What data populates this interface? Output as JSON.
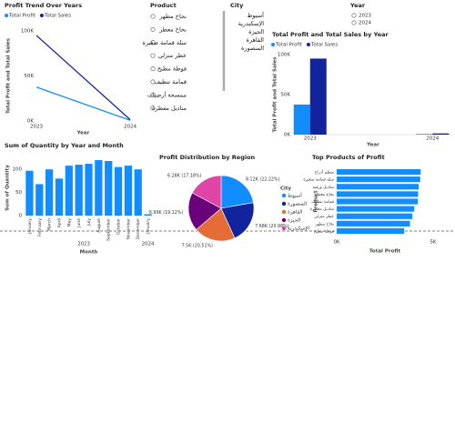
{
  "chart_data": [
    {
      "type": "line",
      "title": "Profit Trend Over Years",
      "x_label": "Year",
      "y_label": "Total Profit and Total Sales",
      "categories": [
        "2023",
        "2024"
      ],
      "series": [
        {
          "name": "Total Profit",
          "color": "#118dff",
          "values": [
            37.6,
            0.8
          ]
        },
        {
          "name": "Total Sales",
          "color": "#12239e",
          "values": [
            95,
            1.5
          ]
        }
      ],
      "ylim": [
        0,
        100
      ],
      "yticks": [
        {
          "value": 0,
          "label": "0K"
        },
        {
          "value": 50,
          "label": "50K"
        },
        {
          "value": 100,
          "label": "100K"
        }
      ]
    },
    {
      "type": "grouped_bar",
      "title": "Total Profit and Total Sales by Year",
      "x_label": "Year",
      "y_label": "Total Profit and Total Sales",
      "categories": [
        "2023",
        "2024"
      ],
      "series": [
        {
          "name": "Total Profit",
          "color": "#118dff",
          "values": [
            37.6,
            0.8
          ]
        },
        {
          "name": "Total Sales",
          "color": "#12239e",
          "values": [
            95,
            1.5
          ]
        }
      ],
      "ylim": [
        0,
        100
      ],
      "yticks": [
        {
          "value": 0,
          "label": "0K"
        },
        {
          "value": 50,
          "label": "50K"
        },
        {
          "value": 100,
          "label": "100K"
        }
      ]
    },
    {
      "type": "bar",
      "title": "Sum of Quantity by Year and Month",
      "x_label": "Month",
      "y_label": "Sum of Quantity",
      "categories": [
        "January",
        "February",
        "March",
        "April",
        "May",
        "June",
        "July",
        "August",
        "September",
        "October",
        "November",
        "December",
        "January"
      ],
      "year_labels": [
        "2023",
        "2024"
      ],
      "values": [
        97,
        68,
        100,
        80,
        108,
        110,
        112,
        120,
        118,
        105,
        108,
        100,
        3
      ],
      "color": "#118dff",
      "ylim": [
        0,
        120
      ],
      "yticks": [
        0,
        50,
        100
      ]
    },
    {
      "type": "pie",
      "title": "Profit Distribution by Region",
      "legend_title": "City",
      "categories": [
        "أسيوط",
        "المنصورة",
        "القاهرة",
        "الجيزة",
        "الإسكندرية"
      ],
      "values": [
        8.12,
        7.68,
        7.5,
        6.99,
        6.28
      ],
      "value_labels": [
        "8.12K (22.22%)",
        "7.68K (20.98%)",
        "7.5K (20.51%)",
        "6.99K (19.12%)",
        "6.28K (17.18%)"
      ],
      "colors": [
        "#118dff",
        "#12239e",
        "#e66c37",
        "#6b007b",
        "#e044a7"
      ]
    },
    {
      "type": "hbar",
      "title": "Top Products of Profit",
      "x_label": "Total Profit",
      "y_label": "Product",
      "categories": [
        "منظم أدراج",
        "سلة قمامة صغيرة",
        "مناديل ورقية",
        "بخاخ معطر",
        "قمامة تنظيف",
        "مناديل معطرة",
        "عطر منزلي",
        "بخاخ مطهر",
        "فوطة مطبخ"
      ],
      "values": [
        4.35,
        4.33,
        4.25,
        4.22,
        4.2,
        4.02,
        3.92,
        3.8,
        3.5
      ],
      "color": "#118dff",
      "xlim": [
        0,
        5
      ],
      "xticks": [
        {
          "value": 0,
          "label": "0K"
        },
        {
          "value": 5,
          "label": "5K"
        }
      ]
    }
  ],
  "slicers": [
    {
      "title": "Product",
      "items": [
        "نجاح مطهر",
        "بخاخ معطر",
        "سلة قمامة صغيرة",
        "عطر منزلي",
        "فوطة مطبخ",
        "قمامة تنظيف",
        "ممسحة أرضيات",
        "مناديل معطرة"
      ]
    },
    {
      "title": "City",
      "items": [
        "أسيوط",
        "الإسكندرية",
        "الجيزة",
        "القاهرة",
        "المنصورة"
      ]
    },
    {
      "title": "Year",
      "items": [
        "2023",
        "2024"
      ]
    }
  ]
}
